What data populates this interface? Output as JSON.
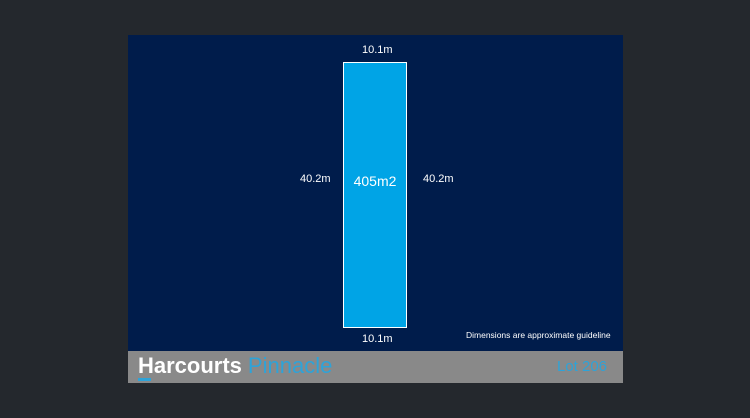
{
  "plan": {
    "top": "10.1m",
    "bottom": "10.1m",
    "left": "40.2m",
    "right": "40.2m",
    "area": "405m2",
    "note": "Dimensions are approximate guideline"
  },
  "footer": {
    "brand": "Harcourts",
    "office": "Pinnacle",
    "lot": "Lot 206"
  },
  "colors": {
    "lot_fill": "#00a4e6",
    "background": "#001c4b",
    "footer": "#898989",
    "accent": "#2ea3d8"
  }
}
